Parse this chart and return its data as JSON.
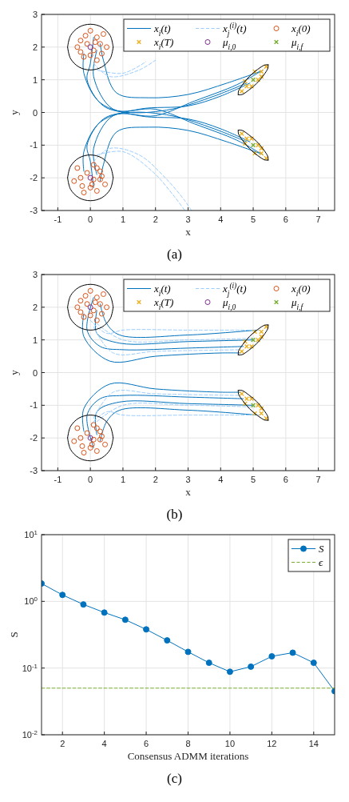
{
  "chart_data": [
    {
      "type": "line",
      "xlabel": "x",
      "ylabel": "y",
      "xlim": [
        -1.5,
        7.5
      ],
      "ylim": [
        -3,
        3
      ],
      "xticks": [
        -1,
        0,
        1,
        2,
        3,
        4,
        5,
        6,
        7
      ],
      "yticks": [
        -3,
        -2,
        -1,
        0,
        1,
        2,
        3
      ],
      "grid": true,
      "legend": "top right",
      "annotations": [
        "(a)"
      ],
      "series": [
        {
          "name": "x$_{i}$(t)",
          "color": "#0072bd",
          "marker": "none",
          "line_style": "solid",
          "x": [
            0.1,
            0.0,
            -0.1,
            0.4,
            1.2,
            2.5,
            3.8,
            4.8,
            null,
            -0.2,
            -0.2,
            0.3,
            1.5,
            3,
            4,
            4.9,
            null,
            0.3,
            0.4,
            0.8,
            1.8,
            3,
            4.2,
            5.2,
            null,
            0.2,
            0.1,
            0.7,
            2,
            3.2,
            4.5,
            5.3,
            null,
            0.1,
            0,
            -0.1,
            0.4,
            1.2,
            2.5,
            3.8,
            4.8,
            null,
            -0.2,
            -0.2,
            0.3,
            1.5,
            3,
            4,
            4.9,
            null,
            0.3,
            0.4,
            0.8,
            1.8,
            3,
            4.2,
            5.2,
            null,
            0.2,
            0.1,
            0.7,
            2,
            3.2,
            4.5,
            5.3
          ],
          "values": [
            2.3,
            1.5,
            1.0,
            0.2,
            0.0,
            0.1,
            0.5,
            0.9,
            null,
            1.8,
            1.2,
            0.3,
            -0.1,
            -0.2,
            -0.5,
            -0.9,
            null,
            2.1,
            1.6,
            0.6,
            0.45,
            0.55,
            0.9,
            1.25,
            null,
            1.9,
            1.1,
            0.1,
            0.1,
            -0.35,
            -0.85,
            -1.3,
            null,
            -2.3,
            -1.5,
            -1.0,
            -0.2,
            0,
            -0.1,
            -0.5,
            -0.9,
            null,
            -1.8,
            -1.2,
            -0.3,
            0.1,
            0.2,
            0.5,
            0.9,
            null,
            -2.1,
            -1.6,
            -0.6,
            -0.45,
            -0.55,
            -0.9,
            -1.25,
            null,
            -1.9,
            -1.1,
            -0.1,
            -0.1,
            0.35,
            0.85,
            1.3
          ]
        },
        {
          "name": "x$_{j}$$^{(i)}$(t)",
          "color": "#99ccff",
          "marker": "none",
          "line_style": "dashed",
          "x": [
            0.1,
            0.6,
            1.5,
            2.0,
            null,
            0.2,
            1,
            1.7,
            null,
            0.1,
            0.6,
            1.5,
            2.3,
            2.9,
            3.1,
            null,
            0.2,
            1,
            1.9,
            2.6,
            2.9
          ],
          "values": [
            1.5,
            1.1,
            1.3,
            1.6,
            null,
            1.3,
            1.2,
            1.55,
            null,
            -1.5,
            -1.1,
            -1.3,
            -2.0,
            -2.7,
            -3.0,
            null,
            -1.3,
            -1.2,
            -1.8,
            -2.6,
            -3.0
          ]
        },
        {
          "name": "x$_{i}$(0)",
          "type": "scatter",
          "color": "#d95319",
          "marker": "circle",
          "x": [
            0,
            -0.3,
            0.2,
            0.4,
            -0.4,
            0.5,
            0.1,
            -0.2,
            0.2,
            0.3,
            -0.1,
            0.0,
            0.35,
            -0.3,
            0.15,
            -0.15,
            -0.5,
            -0.4,
            0.1,
            0.3,
            0.45,
            0.0,
            -0.2,
            0.2,
            -0.3,
            0.1,
            0.3,
            -0.1,
            0.2,
            0.05,
            -0.25,
            0.35
          ],
          "values": [
            2.5,
            2.2,
            2.3,
            2.4,
            2.0,
            2.0,
            1.9,
            1.7,
            1.6,
            2.1,
            2.1,
            1.75,
            1.8,
            1.85,
            2.15,
            2.35,
            -2.1,
            -1.7,
            -1.6,
            -1.8,
            -2.2,
            -2.3,
            -2.45,
            -2.4,
            -2.0,
            -2.05,
            -2.05,
            -1.85,
            -1.7,
            -2.2,
            -2.25,
            -1.95
          ]
        },
        {
          "name": "x$_{i}$(T)",
          "type": "scatter",
          "color": "#edb120",
          "marker": "cross",
          "x": [
            4.65,
            4.8,
            5.25,
            5.4,
            4.95,
            5.05,
            5.25,
            4.75,
            5.15,
            4.65,
            4.8,
            5.25,
            5.4,
            4.95,
            5.05,
            5.25,
            4.75,
            5.15
          ],
          "values": [
            0.65,
            0.8,
            1.25,
            1.4,
            0.8,
            1.25,
            1.1,
            0.95,
            1.0,
            -0.65,
            -0.8,
            -1.25,
            -1.4,
            -0.8,
            -1.25,
            -1.1,
            -0.95,
            -1.0
          ]
        },
        {
          "name": "μ$_{i,0}$",
          "type": "scatter",
          "color": "#7e2f8e",
          "marker": "circle",
          "x": [
            0,
            0
          ],
          "values": [
            2,
            -2
          ]
        },
        {
          "name": "μ$_{i,f}$",
          "type": "scatter",
          "color": "#77ac30",
          "marker": "cross",
          "x": [
            5,
            5
          ],
          "values": [
            1,
            -1
          ]
        },
        {
          "color": "#000000",
          "marker": "none",
          "line_style": "solid",
          "x": [
            -0.7,
            -0.61,
            -0.35,
            0,
            0.35,
            0.61,
            0.7,
            null,
            -0.7,
            -0.61,
            -0.35,
            0,
            0.35,
            0.61,
            0.7,
            null,
            -0.7,
            -0.61,
            -0.35,
            0,
            0.35,
            0.61,
            0.7,
            null,
            -0.7,
            -0.61,
            -0.35,
            0,
            0.35,
            0.61,
            0.7,
            null,
            4.54,
            4.55,
            4.68,
            4.89,
            5.14,
            5.35,
            5.46,
            null,
            4.54,
            4.66,
            4.86,
            5.11,
            5.32,
            5.45,
            5.46,
            null,
            4.54,
            4.55,
            4.68,
            4.89,
            5.14,
            5.35,
            5.46,
            null,
            4.54,
            4.66,
            4.86,
            5.11,
            5.32,
            5.45,
            5.46
          ],
          "values": [
            2,
            2.35,
            2.61,
            2.7,
            2.61,
            2.35,
            2,
            null,
            2,
            1.65,
            1.39,
            1.3,
            1.39,
            1.65,
            2,
            null,
            -2,
            -2.35,
            -2.61,
            -2.7,
            -2.61,
            -2.35,
            -2,
            null,
            -2,
            -1.65,
            -1.39,
            -1.3,
            -1.39,
            -1.65,
            -2,
            null,
            0.54,
            0.66,
            0.86,
            1.11,
            1.32,
            1.45,
            1.46,
            null,
            0.54,
            0.55,
            0.68,
            0.89,
            1.14,
            1.35,
            1.46,
            null,
            -0.54,
            -0.66,
            -0.86,
            -1.11,
            -1.32,
            -1.45,
            -1.46,
            null,
            -0.54,
            -0.55,
            -0.68,
            -0.89,
            -1.14,
            -1.35,
            -1.46
          ]
        }
      ]
    },
    {
      "type": "line",
      "xlabel": "x",
      "ylabel": "y",
      "xlim": [
        -1.5,
        7.5
      ],
      "ylim": [
        -3,
        3
      ],
      "xticks": [
        -1,
        0,
        1,
        2,
        3,
        4,
        5,
        6,
        7
      ],
      "yticks": [
        -3,
        -2,
        -1,
        0,
        1,
        2,
        3
      ],
      "grid": true,
      "legend": "top right",
      "annotations": [
        "(b)"
      ],
      "series": [
        {
          "name": "x$_{i}$(t)",
          "color": "#0072bd",
          "marker": "none",
          "line_style": "solid",
          "x": [
            0.1,
            -0.1,
            0.3,
            1,
            3,
            4.7,
            null,
            -0.2,
            -0.2,
            0.6,
            2,
            4,
            4.6,
            null,
            0.3,
            0.5,
            0.9,
            3,
            5.1,
            null,
            0.2,
            0.2,
            0.9,
            3,
            5,
            null,
            0.1,
            -0.1,
            0.3,
            1,
            3,
            4.7,
            null,
            -0.2,
            -0.2,
            0.6,
            2,
            4,
            4.6,
            null,
            0.3,
            0.5,
            0.9,
            3,
            5.1,
            null,
            0.2,
            0.2,
            0.9,
            3,
            5
          ],
          "values": [
            2.3,
            1.3,
            0.8,
            0.7,
            0.75,
            0.8,
            null,
            1.8,
            1.1,
            0.35,
            0.5,
            0.6,
            0.6,
            null,
            2.1,
            1.5,
            1.15,
            1.15,
            1.3,
            null,
            1.9,
            1.2,
            0.9,
            0.95,
            1.0,
            null,
            -2.3,
            -1.3,
            -0.8,
            -0.7,
            -0.75,
            -0.8,
            null,
            -1.8,
            -1.1,
            -0.35,
            -0.5,
            -0.6,
            -0.6,
            null,
            -2.1,
            -1.5,
            -1.15,
            -1.15,
            -1.3,
            null,
            -1.9,
            -1.2,
            -0.9,
            -0.95,
            -1.0
          ]
        },
        {
          "name": "x$_{j}$$^{(i)}$(t)",
          "color": "#99ccff",
          "marker": "none",
          "line_style": "dashed",
          "x": [
            0,
            0.5,
            1,
            3,
            5.2,
            null,
            0.1,
            0.7,
            2,
            4.6,
            null,
            0.2,
            1,
            3,
            5,
            null,
            0,
            0.5,
            1,
            3,
            5.2,
            null,
            0.1,
            0.7,
            2,
            4.6,
            null,
            0.2,
            1,
            3,
            5
          ],
          "values": [
            1.6,
            1.2,
            1.3,
            1.3,
            1.3,
            null,
            1.4,
            0.6,
            0.65,
            0.7,
            null,
            1.5,
            1.0,
            1.0,
            1.05,
            null,
            -1.6,
            -1.2,
            -1.3,
            -1.3,
            -1.3,
            null,
            -1.4,
            -0.6,
            -0.65,
            -0.7,
            null,
            -1.5,
            -1.0,
            -1.0,
            -1.05
          ]
        },
        {
          "name": "x$_{i}$(0)",
          "type": "scatter",
          "color": "#d95319",
          "marker": "circle",
          "x": [
            0,
            -0.3,
            0.2,
            0.4,
            -0.4,
            0.5,
            0.1,
            -0.2,
            0.2,
            0.3,
            -0.1,
            0.0,
            0.35,
            -0.3,
            0.15,
            -0.15,
            -0.5,
            -0.4,
            0.1,
            0.3,
            0.45,
            0.0,
            -0.2,
            0.2,
            -0.3,
            0.1,
            0.3,
            -0.1,
            0.2,
            0.05,
            -0.25,
            0.35
          ],
          "values": [
            2.5,
            2.2,
            2.3,
            2.4,
            2.0,
            2.0,
            1.9,
            1.7,
            1.6,
            2.1,
            2.1,
            1.75,
            1.8,
            1.85,
            2.15,
            2.35,
            -2.1,
            -1.7,
            -1.6,
            -1.8,
            -2.2,
            -2.3,
            -2.45,
            -2.4,
            -2.0,
            -2.05,
            -2.05,
            -1.85,
            -1.7,
            -2.2,
            -2.25,
            -1.95
          ]
        },
        {
          "name": "x$_{i}$(T)",
          "type": "scatter",
          "color": "#edb120",
          "marker": "cross",
          "x": [
            4.65,
            4.8,
            5.25,
            5.4,
            4.95,
            5.05,
            5.25,
            4.75,
            5.15,
            4.65,
            4.8,
            5.25,
            5.4,
            4.95,
            5.05,
            5.25,
            4.75,
            5.15
          ],
          "values": [
            0.65,
            0.8,
            1.25,
            1.4,
            0.8,
            1.25,
            1.1,
            0.95,
            1.0,
            -0.65,
            -0.8,
            -1.25,
            -1.4,
            -0.8,
            -1.25,
            -1.1,
            -0.95,
            -1.0
          ]
        },
        {
          "name": "μ$_{i,0}$",
          "type": "scatter",
          "color": "#7e2f8e",
          "marker": "circle",
          "x": [
            0,
            0
          ],
          "values": [
            2,
            -2
          ]
        },
        {
          "name": "μ$_{i,f}$",
          "type": "scatter",
          "color": "#77ac30",
          "marker": "cross",
          "x": [
            5,
            5
          ],
          "values": [
            1,
            -1
          ]
        },
        {
          "color": "#000000",
          "marker": "none",
          "line_style": "solid",
          "x": [
            -0.7,
            -0.61,
            -0.35,
            0,
            0.35,
            0.61,
            0.7,
            null,
            -0.7,
            -0.61,
            -0.35,
            0,
            0.35,
            0.61,
            0.7,
            null,
            -0.7,
            -0.61,
            -0.35,
            0,
            0.35,
            0.61,
            0.7,
            null,
            -0.7,
            -0.61,
            -0.35,
            0,
            0.35,
            0.61,
            0.7,
            null,
            4.54,
            4.55,
            4.68,
            4.89,
            5.14,
            5.35,
            5.46,
            null,
            4.54,
            4.66,
            4.86,
            5.11,
            5.32,
            5.45,
            5.46,
            null,
            4.54,
            4.55,
            4.68,
            4.89,
            5.14,
            5.35,
            5.46,
            null,
            4.54,
            4.66,
            4.86,
            5.11,
            5.32,
            5.45,
            5.46
          ],
          "values": [
            2,
            2.35,
            2.61,
            2.7,
            2.61,
            2.35,
            2,
            null,
            2,
            1.65,
            1.39,
            1.3,
            1.39,
            1.65,
            2,
            null,
            -2,
            -2.35,
            -2.61,
            -2.7,
            -2.61,
            -2.35,
            -2,
            null,
            -2,
            -1.65,
            -1.39,
            -1.3,
            -1.39,
            -1.65,
            -2,
            null,
            0.54,
            0.66,
            0.86,
            1.11,
            1.32,
            1.45,
            1.46,
            null,
            0.54,
            0.55,
            0.68,
            0.89,
            1.14,
            1.35,
            1.46,
            null,
            -0.54,
            -0.66,
            -0.86,
            -1.11,
            -1.32,
            -1.45,
            -1.46,
            null,
            -0.54,
            -0.55,
            -0.68,
            -0.89,
            -1.14,
            -1.35,
            -1.46
          ]
        }
      ]
    },
    {
      "type": "line",
      "xlabel": "Consensus ADMM iterations",
      "ylabel": "S",
      "xlim": [
        1,
        15
      ],
      "ylim": [
        0.01,
        10
      ],
      "log": "y",
      "xticks": [
        2,
        4,
        6,
        8,
        10,
        12,
        14
      ],
      "yticks": [
        {
          "value": 0.01,
          "label": "10$^{-2}$"
        },
        {
          "value": 0.1,
          "label": "10$^{-1}$"
        },
        {
          "value": 1,
          "label": "10$^{0}$"
        },
        {
          "value": 10,
          "label": "10$^{1}$"
        }
      ],
      "grid": true,
      "legend": "top right",
      "annotations": [
        "(c)"
      ],
      "series": [
        {
          "name": "S",
          "color": "#0072bd",
          "marker": "circle",
          "line_style": "solid",
          "x": [
            1,
            2,
            3,
            4,
            5,
            6,
            7,
            8,
            9,
            10,
            11,
            12,
            13,
            14,
            15
          ],
          "values": [
            1.85,
            1.25,
            0.9,
            0.68,
            0.53,
            0.38,
            0.26,
            0.175,
            0.12,
            0.088,
            0.105,
            0.15,
            0.17,
            0.12,
            0.045
          ]
        },
        {
          "name": "ϵ",
          "color": "#77ac30",
          "marker": "none",
          "line_style": "dashed",
          "x": [
            1,
            15
          ],
          "values": [
            0.05,
            0.05
          ]
        }
      ]
    }
  ]
}
